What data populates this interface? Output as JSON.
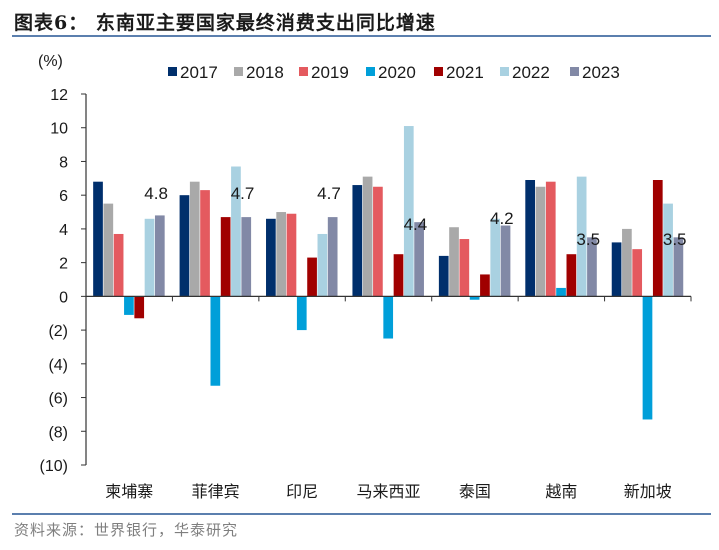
{
  "title": "图表6： 东南亚主要国家最终消费支出同比增速",
  "source": "资料来源：世界银行，华泰研究",
  "chart_data": {
    "type": "bar",
    "title": "东南亚主要国家最终消费支出同比增速",
    "xlabel": "",
    "ylabel": "(%)",
    "ylim": [
      -10,
      12
    ],
    "yticks": [
      12,
      10,
      8,
      6,
      4,
      2,
      0,
      -2,
      -4,
      -6,
      -8,
      -10
    ],
    "ytick_labels": [
      "12",
      "10",
      "8",
      "6",
      "4",
      "2",
      "0",
      "(2)",
      "(4)",
      "(6)",
      "(8)",
      "(10)"
    ],
    "grid": false,
    "legend_position": "top",
    "categories": [
      "柬埔寨",
      "菲律宾",
      "印尼",
      "马来西亚",
      "泰国",
      "越南",
      "新加坡"
    ],
    "series": [
      {
        "name": "2017",
        "color": "#002f6c",
        "values": [
          6.8,
          6.0,
          4.6,
          6.6,
          2.4,
          6.9,
          3.2
        ]
      },
      {
        "name": "2018",
        "color": "#a9a9a9",
        "values": [
          5.5,
          6.8,
          5.0,
          7.1,
          4.1,
          6.5,
          4.0
        ]
      },
      {
        "name": "2019",
        "color": "#e45a5f",
        "values": [
          3.7,
          6.3,
          4.9,
          6.5,
          3.4,
          6.8,
          2.8
        ]
      },
      {
        "name": "2020",
        "color": "#009fd9",
        "values": [
          -1.1,
          -5.3,
          -2.0,
          -2.5,
          -0.2,
          0.5,
          -7.3
        ]
      },
      {
        "name": "2021",
        "color": "#a00000",
        "values": [
          -1.3,
          4.7,
          2.3,
          2.5,
          1.3,
          2.5,
          6.9
        ]
      },
      {
        "name": "2022",
        "color": "#a9d1e1",
        "values": [
          4.6,
          7.7,
          3.7,
          10.1,
          4.6,
          7.1,
          5.5
        ]
      },
      {
        "name": "2023",
        "color": "#8289a6",
        "values": [
          4.8,
          4.7,
          4.7,
          4.4,
          4.2,
          3.5,
          3.5
        ]
      }
    ],
    "annotations": {
      "series": "2023",
      "labels": [
        "4.8",
        "4.7",
        "4.7",
        "4.4",
        "4.2",
        "3.5",
        "3.5"
      ]
    }
  }
}
